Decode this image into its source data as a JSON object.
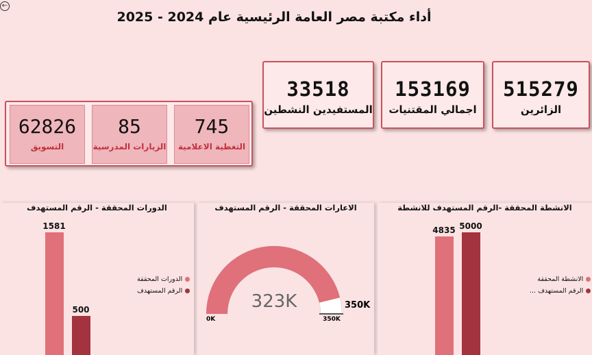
{
  "title": "أداء مكتبة مصر العامة الرئيسية عام 2024 - 2025",
  "back_icon": "arrow-left-circle-icon",
  "kpis": [
    {
      "value": "515279",
      "label": "الزائرين"
    },
    {
      "value": "153169",
      "label": "اجمالي المقتنيات"
    },
    {
      "value": "33518",
      "label": "المستفيدين النشطين"
    }
  ],
  "group_kpis": [
    {
      "value": "745",
      "label": "التغطية الاعلامية"
    },
    {
      "value": "85",
      "label": "الزيارات المدرسية"
    },
    {
      "value": "62826",
      "label": "التسويق"
    }
  ],
  "colors": {
    "achieved": "#e0707a",
    "target": "#a3333f",
    "background": "#fbe3e3",
    "accent": "#c8525c"
  },
  "chart_data": [
    {
      "type": "bar",
      "title": "الدورات المحققة - الرقم المستهدف",
      "series": [
        {
          "name": "الدورات المحققة",
          "values": [
            1581
          ]
        },
        {
          "name": "الرقم المستهدف",
          "values": [
            500
          ]
        }
      ],
      "data_labels": [
        "1581",
        "500"
      ],
      "legend": "right"
    },
    {
      "type": "gauge",
      "title": "الاعارات المحققة - الرقم المستهدف",
      "value": 323000,
      "value_label": "323K",
      "min_label": "0K",
      "max_label": "350K",
      "target_label": "350K",
      "min": 0,
      "max": 350000,
      "target": 350000
    },
    {
      "type": "bar",
      "title": "الانشطة المحققة -الرقم المستهدف للانشطة",
      "series": [
        {
          "name": "الانشطة المحققة",
          "values": [
            4835
          ]
        },
        {
          "name": "الرقم المستهدف ...",
          "values": [
            5000
          ]
        }
      ],
      "data_labels": [
        "4835",
        "5000"
      ],
      "legend": "right"
    }
  ]
}
